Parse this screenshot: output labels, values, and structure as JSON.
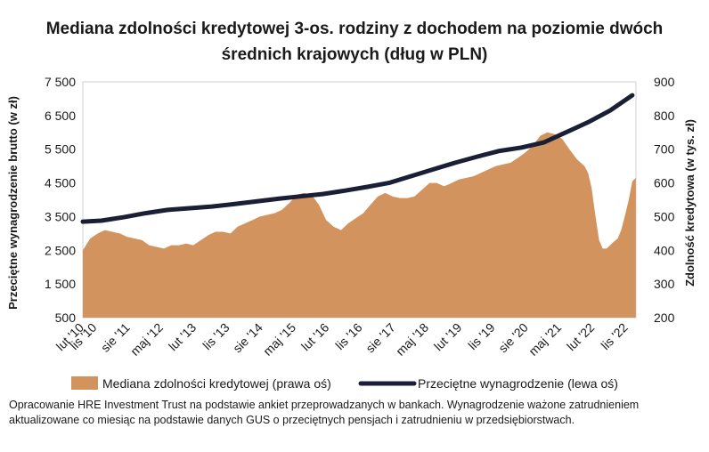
{
  "chart_data": {
    "type": "area+line",
    "title_lines": [
      "Mediana zdolności kredytowej 3-os. rodziny z dochodem na poziomie dwóch",
      "średnich krajowych (dług w PLN)"
    ],
    "ylabel_left": "Przeciętne wynagrodzenie brutto (w zł)",
    "ylabel_right": "Zdolność kredytowa (w tys. zł)",
    "yticks_left": [
      "500",
      "1 500",
      "2 500",
      "3 500",
      "4 500",
      "5 500",
      "6 500",
      "7 500"
    ],
    "yticks_right": [
      "200",
      "300",
      "400",
      "500",
      "600",
      "700",
      "800",
      "900"
    ],
    "ylim_left": [
      500,
      7500
    ],
    "ylim_right": [
      200,
      900
    ],
    "x_range": [
      2010.5833,
      2023.0833
    ],
    "xtick_labels": [
      {
        "label": "lut '10",
        "x": 2010.0833
      },
      {
        "label": "lis '10",
        "x": 2010.8333
      },
      {
        "label": "sie '11",
        "x": 2011.5833
      },
      {
        "label": "maj '12",
        "x": 2012.3333
      },
      {
        "label": "lut '13",
        "x": 2013.0833
      },
      {
        "label": "lis '13",
        "x": 2013.8333
      },
      {
        "label": "sie '14",
        "x": 2014.5833
      },
      {
        "label": "maj '15",
        "x": 2015.3333
      },
      {
        "label": "lut '16",
        "x": 2016.0833
      },
      {
        "label": "lis '16",
        "x": 2016.8333
      },
      {
        "label": "sie '17",
        "x": 2017.5833
      },
      {
        "label": "maj '18",
        "x": 2018.3333
      },
      {
        "label": "lut '19",
        "x": 2019.0833
      },
      {
        "label": "lis '19",
        "x": 2019.8333
      },
      {
        "label": "sie '20",
        "x": 2020.5833
      },
      {
        "label": "maj '21",
        "x": 2021.3333
      },
      {
        "label": "lut '22",
        "x": 2022.0833
      },
      {
        "label": "lis '22",
        "x": 2022.8333
      }
    ],
    "series": [
      {
        "name": "Mediana zdolności kredytowej (prawa oś)",
        "type": "area",
        "axis": "right",
        "color": "#D2935F",
        "x": [
          2010.0833,
          2010.33,
          2010.58,
          2010.83,
          2011.0,
          2011.2,
          2011.42,
          2011.58,
          2011.75,
          2011.9,
          2012.0,
          2012.17,
          2012.33,
          2012.5,
          2012.67,
          2012.83,
          2013.0,
          2013.17,
          2013.33,
          2013.5,
          2013.67,
          2013.83,
          2014.0,
          2014.17,
          2014.33,
          2014.5,
          2014.67,
          2014.83,
          2015.0,
          2015.17,
          2015.33,
          2015.5,
          2015.67,
          2015.83,
          2015.92,
          2016.08,
          2016.25,
          2016.42,
          2016.58,
          2016.75,
          2016.92,
          2017.08,
          2017.25,
          2017.42,
          2017.58,
          2017.75,
          2017.92,
          2018.08,
          2018.25,
          2018.42,
          2018.58,
          2018.75,
          2018.92,
          2019.08,
          2019.25,
          2019.42,
          2019.58,
          2019.75,
          2019.92,
          2020.08,
          2020.25,
          2020.42,
          2020.58,
          2020.75,
          2020.92,
          2021.08,
          2021.25,
          2021.42,
          2021.58,
          2021.75,
          2021.92,
          2022.0,
          2022.08,
          2022.17,
          2022.25,
          2022.33,
          2022.42,
          2022.5,
          2022.58,
          2022.67,
          2022.75,
          2022.83,
          2022.92,
          2023.0,
          2023.08
        ],
        "values": [
          485,
          485,
          487,
          490,
          500,
          505,
          508,
          505,
          498,
          495,
          485,
          500,
          510,
          515,
          512,
          515,
          520,
          530,
          542,
          530,
          520,
          538,
          545,
          560,
          570,
          575,
          580,
          585,
          590,
          605,
          618,
          612,
          600,
          585,
          570,
          560,
          555,
          565,
          575,
          600,
          620,
          630,
          620,
          615,
          620,
          640,
          620,
          635,
          650,
          660,
          670,
          660,
          665,
          670,
          675,
          685,
          700,
          720,
          740,
          760,
          775,
          790,
          795,
          800,
          785,
          760,
          740,
          720,
          720,
          710,
          680,
          640,
          570,
          470,
          410,
          385,
          400,
          405,
          410,
          420,
          440,
          470,
          520,
          580,
          620
        ],
        "values_left_axis": [
          2500,
          2850,
          3000,
          3100,
          3050,
          3000,
          2900,
          2850,
          2800,
          2650,
          2600,
          2550,
          2650,
          2650,
          2700,
          2650,
          2800,
          2950,
          3050,
          3050,
          3000,
          3200,
          3300,
          3400,
          3500,
          3550,
          3600,
          3700,
          3900,
          4150,
          4200,
          4150,
          3850,
          3400,
          3200,
          3100,
          3300,
          3450,
          3600,
          3850,
          4100,
          4200,
          4100,
          4050,
          4050,
          4100,
          4300,
          4500,
          4500,
          4400,
          4500,
          4600,
          4650,
          4700,
          4800,
          4900,
          5000,
          5050,
          5100,
          5250,
          5400,
          5600,
          5900,
          6000,
          5950,
          5800,
          5500,
          5200,
          5000,
          4800,
          4350,
          3500,
          2800,
          2550,
          2550,
          2650,
          2750,
          2850,
          3100,
          3500,
          4000,
          4550,
          4650
        ],
        "values_left_axis_x": [
          2010.5833,
          2010.75,
          2010.92,
          2011.08,
          2011.25,
          2011.42,
          2011.58,
          2011.75,
          2011.92,
          2012.08,
          2012.25,
          2012.42,
          2012.58,
          2012.75,
          2012.92,
          2013.08,
          2013.25,
          2013.42,
          2013.58,
          2013.75,
          2013.92,
          2014.08,
          2014.25,
          2014.42,
          2014.58,
          2014.75,
          2014.92,
          2015.08,
          2015.25,
          2015.42,
          2015.58,
          2015.75,
          2015.92,
          2016.08,
          2016.25,
          2016.42,
          2016.58,
          2016.75,
          2016.92,
          2017.08,
          2017.25,
          2017.42,
          2017.58,
          2017.75,
          2017.92,
          2018.08,
          2018.25,
          2018.42,
          2018.58,
          2018.75,
          2018.92,
          2019.08,
          2019.25,
          2019.42,
          2019.58,
          2019.75,
          2019.92,
          2020.08,
          2020.25,
          2020.42,
          2020.58,
          2020.75,
          2020.92,
          2021.08,
          2021.25,
          2021.42,
          2021.58,
          2021.75,
          2021.92,
          2022.0,
          2022.08,
          2022.17,
          2022.25,
          2022.33,
          2022.42,
          2022.5,
          2022.58,
          2022.67,
          2022.75,
          2022.83,
          2022.92,
          2023.0,
          2023.08
        ]
      },
      {
        "name": "Przeciętne wynagrodzenie (lewa oś)",
        "type": "line",
        "axis": "left",
        "color": "#1B1F36",
        "x": [
          2010.5833,
          2011.0,
          2011.5,
          2012.0,
          2012.5,
          2013.0,
          2013.5,
          2014.0,
          2014.5,
          2015.0,
          2015.5,
          2016.0,
          2016.5,
          2017.0,
          2017.5,
          2018.0,
          2018.5,
          2019.0,
          2019.5,
          2020.0,
          2020.5,
          2021.0,
          2021.5,
          2022.0,
          2022.5,
          2023.0
        ],
        "values": [
          3350,
          3380,
          3480,
          3600,
          3700,
          3750,
          3800,
          3870,
          3950,
          4030,
          4100,
          4170,
          4270,
          4380,
          4500,
          4700,
          4900,
          5100,
          5280,
          5450,
          5550,
          5700,
          6000,
          6300,
          6650,
          7100
        ]
      }
    ],
    "legend": {
      "position": "bottom"
    }
  },
  "footnote": "Opracowanie HRE Investment Trust na podstawie ankiet przeprowadzanych w bankach. Wynagrodzenie ważone zatrudnieniem aktualizowane co miesiąc na podstawie danych GUS o przeciętnych pensjach i zatrudnieniu w przedsiębiorstwach."
}
